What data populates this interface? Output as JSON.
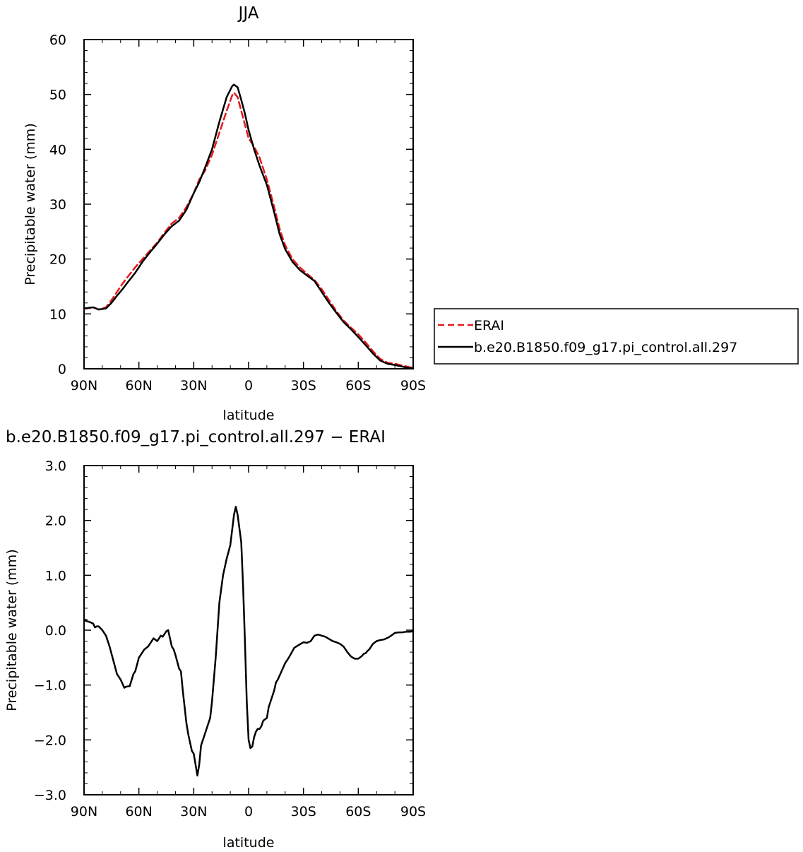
{
  "colors": {
    "erai": "#e31a1c",
    "model": "#000000",
    "axes": "#000000",
    "background": "#ffffff"
  },
  "legend": {
    "entries": [
      {
        "label": "ERAI",
        "style": "dashed",
        "color": "#e31a1c"
      },
      {
        "label": "b.e20.B1850.f09_g17.pi_control.all.297",
        "style": "solid",
        "color": "#000000"
      }
    ],
    "placement": "right of top panel"
  },
  "chart_data": [
    {
      "type": "line",
      "title": "JJA",
      "xlabel": "latitude",
      "ylabel": "Precipitable water (mm)",
      "xlim": [
        90,
        -90
      ],
      "ylim": [
        0,
        60
      ],
      "x_ticks": [
        {
          "value": 90,
          "label": "90N"
        },
        {
          "value": 60,
          "label": "60N"
        },
        {
          "value": 30,
          "label": "30N"
        },
        {
          "value": 0,
          "label": "0"
        },
        {
          "value": -30,
          "label": "30S"
        },
        {
          "value": -60,
          "label": "60S"
        },
        {
          "value": -90,
          "label": "90S"
        }
      ],
      "y_ticks": [
        {
          "value": 0,
          "label": "0"
        },
        {
          "value": 10,
          "label": "10"
        },
        {
          "value": 20,
          "label": "20"
        },
        {
          "value": 30,
          "label": "30"
        },
        {
          "value": 40,
          "label": "40"
        },
        {
          "value": 50,
          "label": "50"
        },
        {
          "value": 60,
          "label": "60"
        }
      ],
      "grid": false,
      "series": [
        {
          "name": "ERAI",
          "style": "dashed",
          "color": "#e31a1c",
          "x": [
            90,
            85,
            82,
            78,
            75,
            72,
            69,
            66,
            62,
            58,
            54,
            50,
            46,
            42,
            38,
            34,
            30,
            27,
            24,
            20,
            16,
            12,
            9,
            8,
            6,
            4,
            2,
            0,
            -3,
            -6,
            -10,
            -14,
            -17,
            -20,
            -24,
            -28,
            -32,
            -36,
            -40,
            -44,
            -48,
            -52,
            -56,
            -60,
            -64,
            -68,
            -72,
            -76,
            -80,
            -84,
            -88,
            -90
          ],
          "y": [
            10.9,
            11.2,
            10.8,
            11.2,
            12.5,
            14.0,
            15.5,
            16.8,
            18.5,
            20.0,
            21.5,
            23.0,
            24.8,
            26.5,
            27.5,
            29.5,
            32.0,
            34.5,
            36.0,
            39.0,
            43.0,
            47.0,
            49.8,
            50.3,
            49.5,
            47.0,
            44.5,
            42.0,
            40.5,
            38.5,
            34.5,
            29.5,
            25.5,
            22.5,
            20.0,
            18.5,
            17.3,
            16.2,
            14.5,
            12.5,
            10.5,
            8.8,
            7.5,
            6.3,
            4.8,
            3.2,
            1.8,
            1.1,
            0.9,
            0.6,
            0.3,
            0.2
          ]
        },
        {
          "name": "b.e20.B1850.f09_g17.pi_control.all.297",
          "style": "solid",
          "color": "#000000",
          "x": [
            90,
            85,
            82,
            78,
            75,
            72,
            69,
            66,
            62,
            58,
            54,
            50,
            46,
            42,
            38,
            34,
            30,
            27,
            24,
            20,
            16,
            12,
            9,
            8,
            6,
            4,
            2,
            0,
            -3,
            -6,
            -10,
            -14,
            -17,
            -20,
            -24,
            -28,
            -32,
            -36,
            -40,
            -44,
            -48,
            -52,
            -56,
            -60,
            -64,
            -68,
            -72,
            -76,
            -80,
            -84,
            -88,
            -90
          ],
          "y": [
            11.0,
            11.2,
            10.8,
            11.0,
            12.0,
            13.3,
            14.5,
            15.8,
            17.5,
            19.5,
            21.2,
            22.8,
            24.5,
            26.0,
            27.0,
            29.0,
            32.0,
            34.0,
            36.5,
            40.0,
            45.0,
            49.5,
            51.5,
            51.8,
            51.3,
            49.0,
            46.5,
            43.5,
            40.0,
            37.0,
            33.5,
            28.5,
            24.5,
            21.8,
            19.5,
            18.0,
            17.0,
            16.0,
            14.0,
            12.0,
            10.2,
            8.5,
            7.2,
            5.8,
            4.3,
            2.8,
            1.5,
            0.9,
            0.7,
            0.4,
            0.1,
            0.1
          ]
        }
      ]
    },
    {
      "type": "line",
      "title": "b.e20.B1850.f09_g17.pi_control.all.297 − ERAI",
      "xlabel": "latitude",
      "ylabel": "Precipitable water (mm)",
      "xlim": [
        90,
        -90
      ],
      "ylim": [
        -3.0,
        3.0
      ],
      "x_ticks": [
        {
          "value": 90,
          "label": "90N"
        },
        {
          "value": 60,
          "label": "60N"
        },
        {
          "value": 30,
          "label": "30N"
        },
        {
          "value": 0,
          "label": "0"
        },
        {
          "value": -30,
          "label": "30S"
        },
        {
          "value": -60,
          "label": "60S"
        },
        {
          "value": -90,
          "label": "90S"
        }
      ],
      "y_ticks": [
        {
          "value": -3.0,
          "label": "−3.0"
        },
        {
          "value": -2.0,
          "label": "−2.0"
        },
        {
          "value": -1.0,
          "label": "−1.0"
        },
        {
          "value": 0.0,
          "label": "0.0"
        },
        {
          "value": 1.0,
          "label": "1.0"
        },
        {
          "value": 2.0,
          "label": "2.0"
        },
        {
          "value": 3.0,
          "label": "3.0"
        }
      ],
      "grid": false,
      "series": [
        {
          "name": "b.e20.B1850.f09_g17.pi_control.all.297 − ERAI",
          "style": "solid",
          "color": "#000000",
          "x": [
            90,
            87,
            85,
            84,
            83,
            82,
            80,
            79,
            78,
            76,
            74,
            72,
            70,
            68,
            67,
            65,
            63,
            62,
            60,
            59,
            57,
            55,
            52,
            50,
            48,
            47,
            45,
            44,
            43,
            42,
            41,
            40,
            38,
            37,
            36,
            34,
            33,
            31,
            30,
            28,
            27,
            26,
            25,
            24,
            22,
            21,
            20,
            18,
            17,
            16,
            14,
            12,
            10,
            8,
            7,
            6,
            4,
            3,
            2,
            1,
            0,
            -1,
            -2,
            -3,
            -4,
            -5,
            -6,
            -7,
            -8,
            -10,
            -11,
            -12,
            -14,
            -15,
            -16,
            -18,
            -20,
            -22,
            -25,
            -27,
            -30,
            -32,
            -34,
            -36,
            -38,
            -40,
            -42,
            -44,
            -46,
            -48,
            -50,
            -52,
            -54,
            -56,
            -58,
            -60,
            -62,
            -63,
            -64,
            -65,
            -66,
            -67,
            -68,
            -70,
            -72,
            -74,
            -76,
            -78,
            -80,
            -82,
            -84,
            -86,
            -88,
            -90
          ],
          "y": [
            0.18,
            0.15,
            0.12,
            0.05,
            0.07,
            0.07,
            0.0,
            -0.05,
            -0.1,
            -0.3,
            -0.55,
            -0.8,
            -0.9,
            -1.05,
            -1.03,
            -1.02,
            -0.8,
            -0.75,
            -0.5,
            -0.45,
            -0.35,
            -0.3,
            -0.15,
            -0.2,
            -0.1,
            -0.12,
            -0.02,
            -0.0,
            -0.15,
            -0.3,
            -0.35,
            -0.45,
            -0.7,
            -0.75,
            -1.1,
            -1.7,
            -1.9,
            -2.2,
            -2.25,
            -2.65,
            -2.45,
            -2.1,
            -2.0,
            -1.9,
            -1.7,
            -1.6,
            -1.3,
            -0.5,
            0.0,
            0.5,
            1.0,
            1.3,
            1.55,
            2.1,
            2.25,
            2.1,
            1.6,
            0.8,
            -0.2,
            -1.3,
            -2.0,
            -2.15,
            -2.12,
            -1.95,
            -1.85,
            -1.8,
            -1.8,
            -1.75,
            -1.65,
            -1.6,
            -1.4,
            -1.3,
            -1.1,
            -0.95,
            -0.9,
            -0.75,
            -0.6,
            -0.5,
            -0.32,
            -0.28,
            -0.22,
            -0.23,
            -0.2,
            -0.1,
            -0.08,
            -0.1,
            -0.12,
            -0.16,
            -0.2,
            -0.22,
            -0.25,
            -0.3,
            -0.4,
            -0.48,
            -0.52,
            -0.52,
            -0.47,
            -0.43,
            -0.42,
            -0.38,
            -0.35,
            -0.3,
            -0.25,
            -0.2,
            -0.18,
            -0.17,
            -0.14,
            -0.1,
            -0.05,
            -0.04,
            -0.04,
            -0.03,
            -0.03,
            -0.02
          ]
        }
      ]
    }
  ]
}
